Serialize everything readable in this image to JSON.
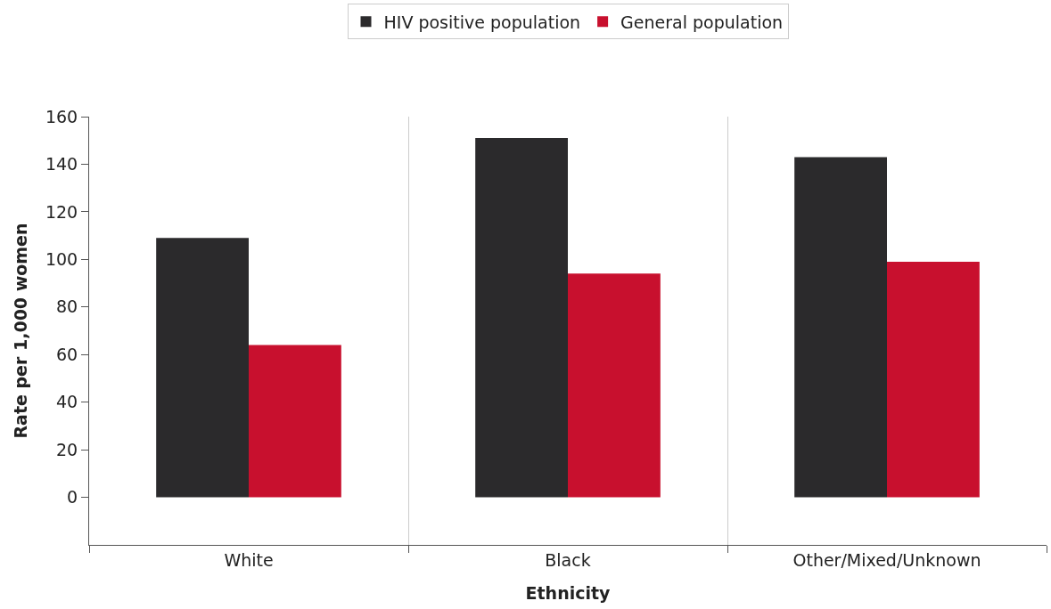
{
  "chart_data": {
    "type": "bar",
    "xlabel": "Ethnicity",
    "ylabel": "Rate per 1,000 women",
    "categories": [
      "White",
      "Black",
      "Other/Mixed/Unknown"
    ],
    "series": [
      {
        "name": "HIV positive population",
        "color": "#2b2a2c",
        "values": [
          109,
          151,
          143
        ]
      },
      {
        "name": "General population",
        "color": "#c8102e",
        "values": [
          64,
          94,
          99
        ]
      }
    ],
    "ylim": [
      -20,
      160
    ],
    "yticks": [
      0,
      20,
      40,
      60,
      80,
      100,
      120,
      140,
      160
    ],
    "grid": "x",
    "legend": "top"
  }
}
